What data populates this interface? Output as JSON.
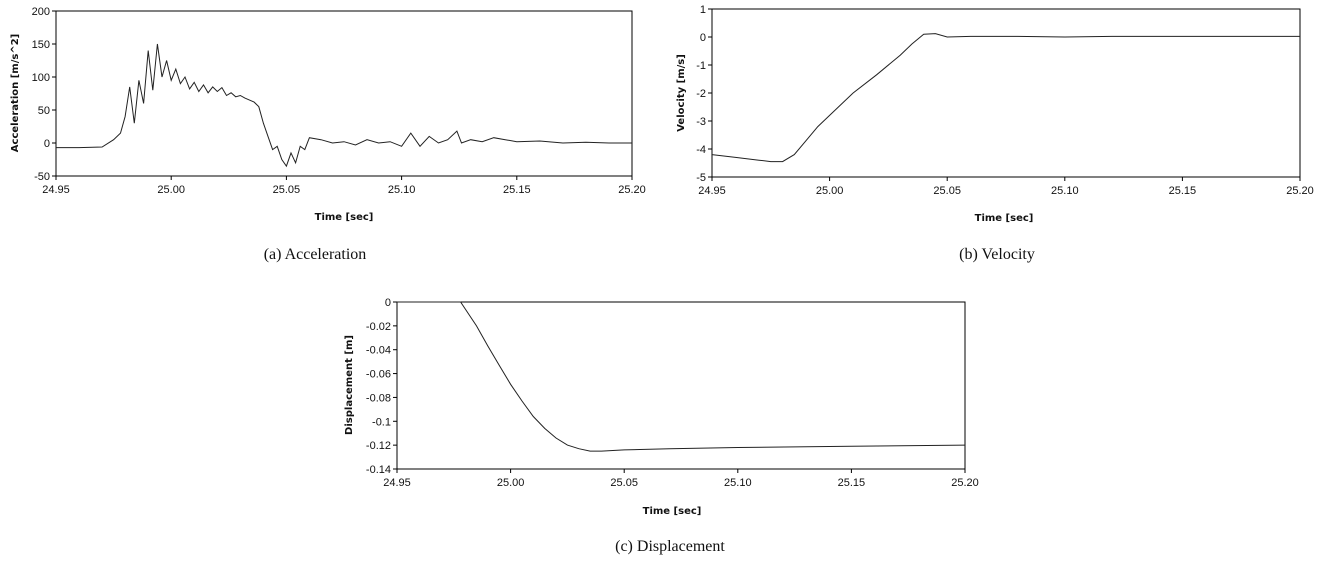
{
  "chart_data": [
    {
      "type": "line",
      "caption": "(a)  Acceleration",
      "xlabel": "Time [sec]",
      "ylabel": "Acceleration [m/s^2]",
      "xlim": [
        24.95,
        25.2
      ],
      "ylim": [
        -50,
        200
      ],
      "xticks": [
        "24.95",
        "25.00",
        "25.05",
        "25.10",
        "25.15",
        "25.20"
      ],
      "yticks": [
        "-50",
        "0",
        "50",
        "100",
        "150",
        "200"
      ],
      "series": [
        {
          "x": [
            24.95,
            24.96,
            24.97,
            24.975,
            24.978,
            24.98,
            24.982,
            24.984,
            24.986,
            24.988,
            24.99,
            24.992,
            24.994,
            24.996,
            24.998,
            25.0,
            25.002,
            25.004,
            25.006,
            25.008,
            25.01,
            25.012,
            25.014,
            25.016,
            25.018,
            25.02,
            25.022,
            25.024,
            25.026,
            25.028,
            25.03,
            25.032,
            25.034,
            25.036,
            25.038,
            25.04,
            25.042,
            25.044,
            25.046,
            25.048,
            25.05,
            25.052,
            25.054,
            25.056,
            25.058,
            25.06,
            25.065,
            25.07,
            25.075,
            25.08,
            25.085,
            25.09,
            25.095,
            25.1,
            25.104,
            25.108,
            25.112,
            25.116,
            25.12,
            25.124,
            25.126,
            25.13,
            25.135,
            25.14,
            25.145,
            25.15,
            25.16,
            25.17,
            25.18,
            25.19,
            25.2
          ],
          "values": [
            -7,
            -7,
            -6,
            5,
            15,
            40,
            85,
            30,
            95,
            60,
            140,
            80,
            150,
            100,
            125,
            95,
            112,
            90,
            100,
            82,
            92,
            78,
            88,
            76,
            85,
            78,
            84,
            72,
            76,
            70,
            72,
            68,
            65,
            62,
            55,
            30,
            10,
            -10,
            -5,
            -25,
            -35,
            -15,
            -30,
            -5,
            -10,
            8,
            5,
            0,
            2,
            -3,
            5,
            0,
            2,
            -5,
            15,
            -5,
            10,
            0,
            5,
            18,
            0,
            5,
            2,
            8,
            5,
            2,
            3,
            0,
            1,
            0,
            0
          ]
        }
      ]
    },
    {
      "type": "line",
      "caption": "(b)  Velocity",
      "xlabel": "Time [sec]",
      "ylabel": "Velocity [m/s]",
      "xlim": [
        24.95,
        25.2
      ],
      "ylim": [
        -5,
        1
      ],
      "xticks": [
        "24.95",
        "25.00",
        "25.05",
        "25.10",
        "25.15",
        "25.20"
      ],
      "yticks": [
        "-5",
        "-4",
        "-3",
        "-2",
        "-1",
        "0",
        "1"
      ],
      "series": [
        {
          "x": [
            24.95,
            24.96,
            24.97,
            24.975,
            24.98,
            24.985,
            24.99,
            24.995,
            25.0,
            25.01,
            25.02,
            25.03,
            25.035,
            25.04,
            25.045,
            25.05,
            25.06,
            25.08,
            25.1,
            25.12,
            25.15,
            25.2
          ],
          "values": [
            -4.2,
            -4.3,
            -4.4,
            -4.45,
            -4.45,
            -4.2,
            -3.7,
            -3.2,
            -2.8,
            -2.0,
            -1.35,
            -0.65,
            -0.25,
            0.1,
            0.12,
            0.0,
            0.02,
            0.02,
            0.0,
            0.02,
            0.02,
            0.02
          ]
        }
      ]
    },
    {
      "type": "line",
      "caption": "(c)  Displacement",
      "xlabel": "Time [sec]",
      "ylabel": "Displacement [m]",
      "xlim": [
        24.95,
        25.2
      ],
      "ylim": [
        -0.14,
        0
      ],
      "xticks": [
        "24.95",
        "25.00",
        "25.05",
        "25.10",
        "25.15",
        "25.20"
      ],
      "yticks": [
        "-0.14",
        "-0.12",
        "-0.1",
        "-0.08",
        "-0.06",
        "-0.04",
        "-0.02",
        "0"
      ],
      "series": [
        {
          "x": [
            24.95,
            24.96,
            24.97,
            24.978,
            24.985,
            24.99,
            24.995,
            25.0,
            25.005,
            25.01,
            25.015,
            25.02,
            25.025,
            25.03,
            25.035,
            25.04,
            25.05,
            25.07,
            25.1,
            25.15,
            25.2
          ],
          "values": [
            0,
            0,
            0,
            0,
            -0.02,
            -0.037,
            -0.053,
            -0.069,
            -0.083,
            -0.096,
            -0.106,
            -0.114,
            -0.12,
            -0.123,
            -0.125,
            -0.125,
            -0.124,
            -0.123,
            -0.122,
            -0.121,
            -0.12
          ]
        }
      ]
    }
  ]
}
